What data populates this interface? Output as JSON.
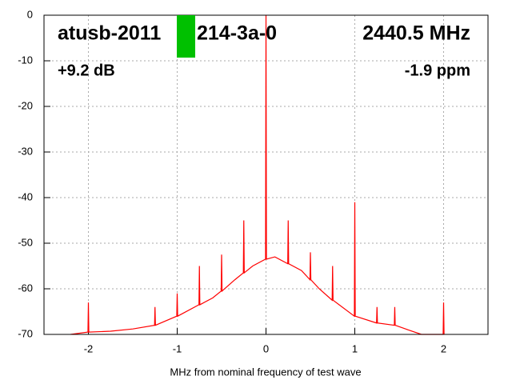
{
  "chart_data": {
    "type": "line",
    "annotations": [
      "atusb-2011",
      "214-3a-0",
      "2440.5 MHz",
      "+9.2 dB",
      "-1.9 ppm"
    ],
    "x_label": "MHz from nominal frequency of test wave",
    "x": [
      -2.2,
      -2.005,
      -2,
      -1.995,
      -1.75,
      -1.5,
      -1.255,
      -1.25,
      -1.245,
      -1.005,
      -1,
      -0.995,
      -0.755,
      -0.75,
      -0.745,
      -0.6,
      -0.505,
      -0.5,
      -0.495,
      -0.35,
      -0.255,
      -0.25,
      -0.245,
      -0.15,
      -0.005,
      0,
      0.005,
      0.1,
      0.245,
      0.25,
      0.255,
      0.4,
      0.495,
      0.5,
      0.505,
      0.6,
      0.745,
      0.75,
      0.755,
      0.995,
      1,
      1.005,
      1.245,
      1.25,
      1.255,
      1.445,
      1.45,
      1.455,
      1.6,
      1.75,
      1.995,
      2,
      2.005
    ],
    "series": [
      {
        "color": "#ff0000",
        "values": [
          -70,
          -69.5,
          -63,
          -69.5,
          -69.3,
          -68.8,
          -68,
          -64,
          -68,
          -66,
          -61,
          -66,
          -63.5,
          -55,
          -63.5,
          -62,
          -60.5,
          -52.5,
          -60.5,
          -58,
          -56.5,
          -45,
          -56.5,
          -55,
          -53.5,
          0,
          -53.5,
          -53,
          -54.5,
          -45,
          -54.5,
          -56,
          -58,
          -52,
          -58,
          -60,
          -62.5,
          -55,
          -62.5,
          -66,
          -41,
          -66,
          -67.5,
          -64,
          -67.5,
          -68,
          -64,
          -68,
          -69,
          -70,
          -70,
          -63,
          -70
        ]
      }
    ],
    "xlim": [
      -2.5,
      2.5
    ],
    "xticks": [
      -2,
      -1,
      0,
      1,
      2
    ],
    "ylim": [
      -70,
      0
    ],
    "yticks": [
      0,
      -10,
      -20,
      -30,
      -40,
      -50,
      -60,
      -70
    ],
    "grid": true
  }
}
